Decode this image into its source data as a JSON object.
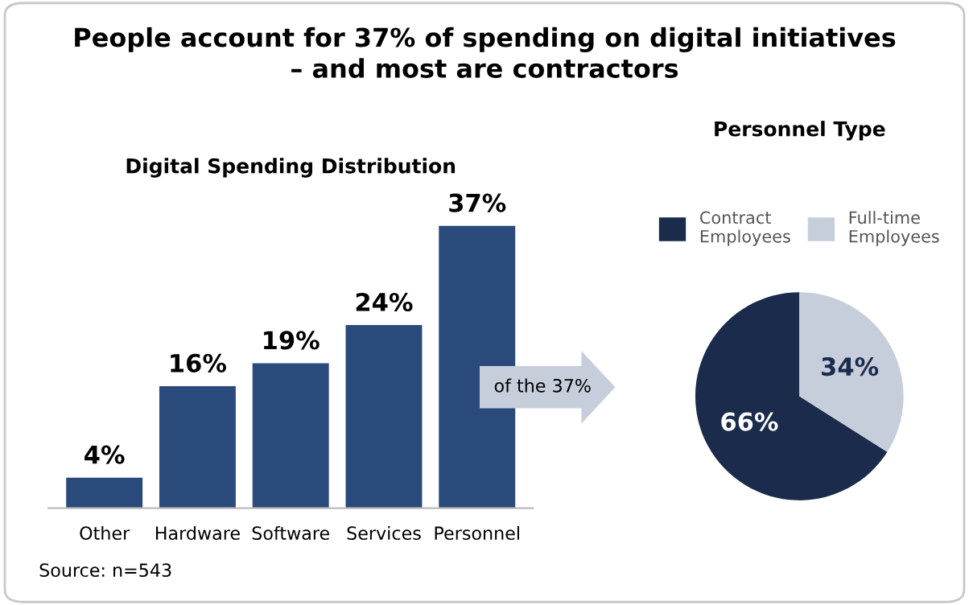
{
  "chart_data": [
    {
      "type": "bar",
      "title": "People account for 37% of spending on digital initiatives\n– and most are contractors",
      "subtitle": "Digital Spending Distribution",
      "categories": [
        "Other",
        "Hardware",
        "Software",
        "Services",
        "Personnel"
      ],
      "values": [
        4,
        16,
        19,
        24,
        37
      ],
      "value_labels": [
        "4%",
        "16%",
        "19%",
        "24%",
        "37%"
      ],
      "color": "#2b4a7c",
      "annotations": [
        "Source: n=543"
      ]
    },
    {
      "type": "pie",
      "title": "Personnel Type",
      "categories": [
        "Contract Employees",
        "Full-time Employees"
      ],
      "values": [
        66,
        34
      ],
      "value_labels": [
        "66%",
        "34%"
      ],
      "colors": [
        "#1b2b4b",
        "#c6cedc"
      ],
      "legend": "top",
      "annotations": [
        "of the 37%"
      ]
    }
  ]
}
